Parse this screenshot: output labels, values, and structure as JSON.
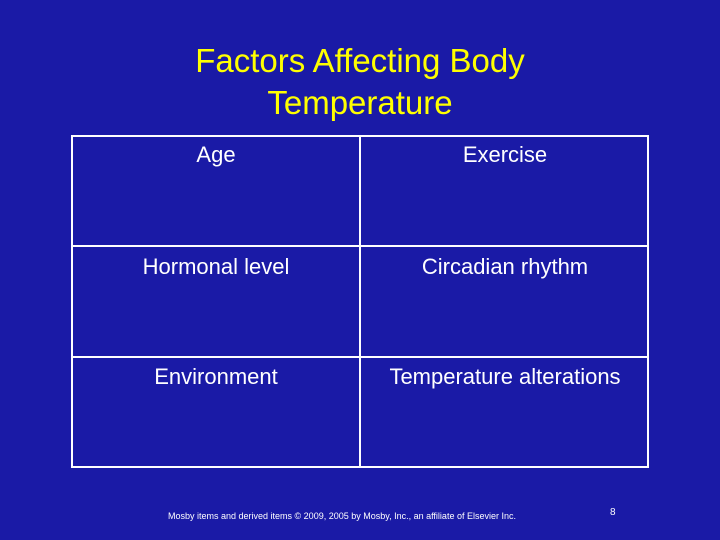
{
  "slide": {
    "title_line1": "Factors Affecting Body",
    "title_line2": "Temperature",
    "cells": [
      "Age",
      "Exercise",
      "Hormonal level",
      "Circadian rhythm",
      "Environment",
      "Temperature alterations"
    ],
    "footer": "Mosby items and derived items © 2009, 2005 by Mosby, Inc., an affiliate of Elsevier Inc.",
    "page_number": "8"
  },
  "colors": {
    "background": "#1a1aa6",
    "title": "#ffff00",
    "text": "#ffffff",
    "grid_lines": "#ffffff"
  }
}
